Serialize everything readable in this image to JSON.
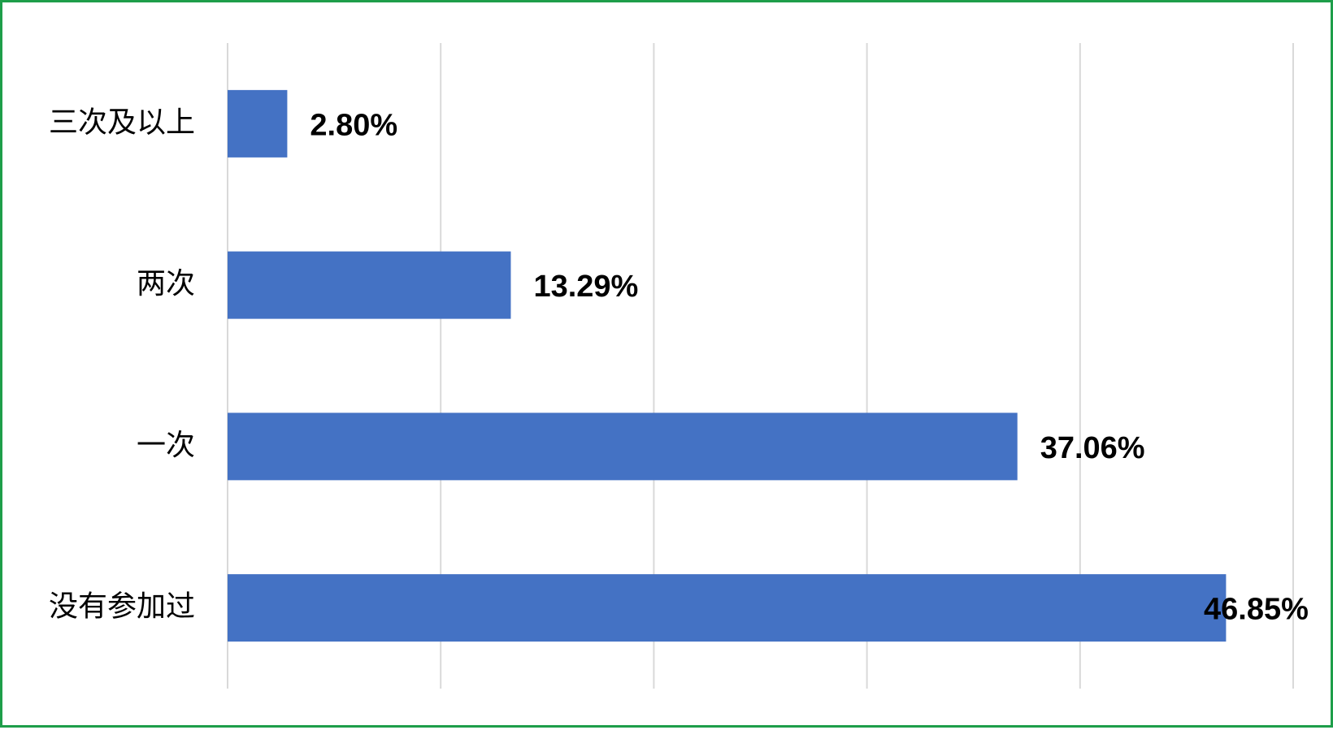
{
  "chart_data": {
    "type": "bar",
    "orientation": "horizontal",
    "categories": [
      "三次及以上",
      "两次",
      "一次",
      "没有参加过"
    ],
    "values": [
      2.8,
      13.29,
      37.06,
      46.85
    ],
    "value_labels": [
      "2.80%",
      "13.29%",
      "37.06%",
      "46.85%"
    ],
    "xlim": [
      0,
      50
    ],
    "x_gridlines": [
      0,
      10,
      20,
      30,
      40,
      50
    ],
    "grid": true,
    "legend": "none",
    "bar_color": "#4472c4",
    "border_color": "#1e9e4a"
  }
}
